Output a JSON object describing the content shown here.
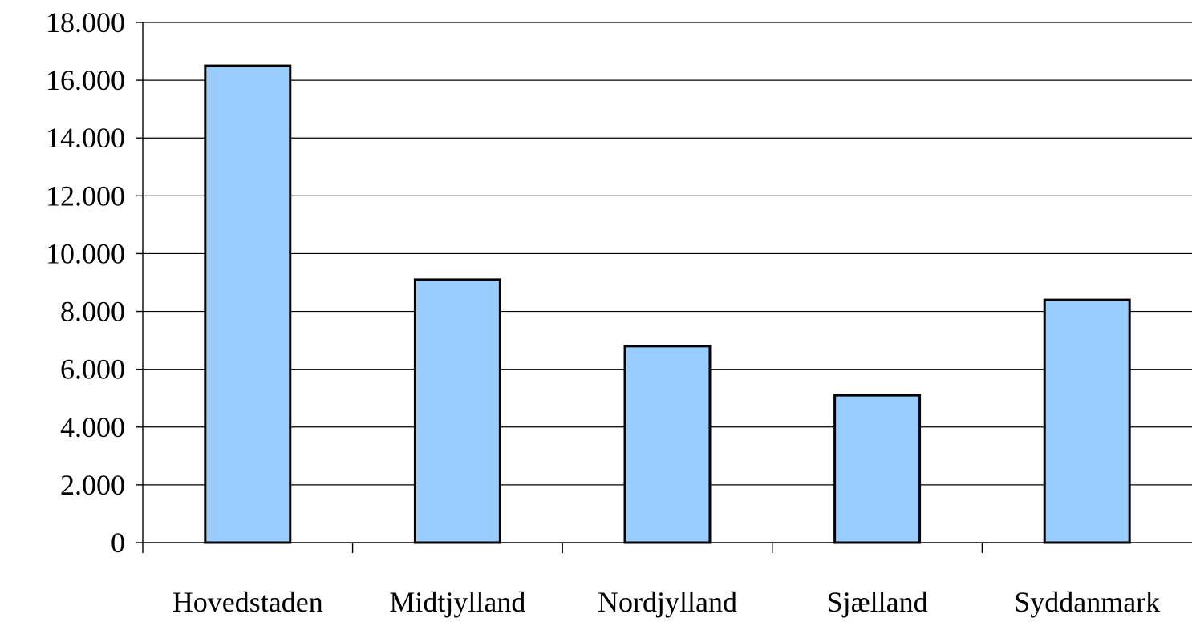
{
  "chart_data": {
    "type": "bar",
    "title": "",
    "xlabel": "",
    "ylabel": "",
    "categories": [
      "Hovedstaden",
      "Midtjylland",
      "Nordjylland",
      "Sjælland",
      "Syddanmark"
    ],
    "values": [
      16500,
      9100,
      6800,
      5100,
      8400
    ],
    "ylim": [
      0,
      18000
    ],
    "y_ticks": [
      0,
      2000,
      4000,
      6000,
      8000,
      10000,
      12000,
      14000,
      16000,
      18000
    ],
    "y_tick_labels": [
      "0",
      "2.000",
      "4.000",
      "6.000",
      "8.000",
      "10.000",
      "12.000",
      "14.000",
      "16.000",
      "18.000"
    ],
    "grid": true,
    "legend": "none",
    "bar_color": "#99ccff"
  }
}
